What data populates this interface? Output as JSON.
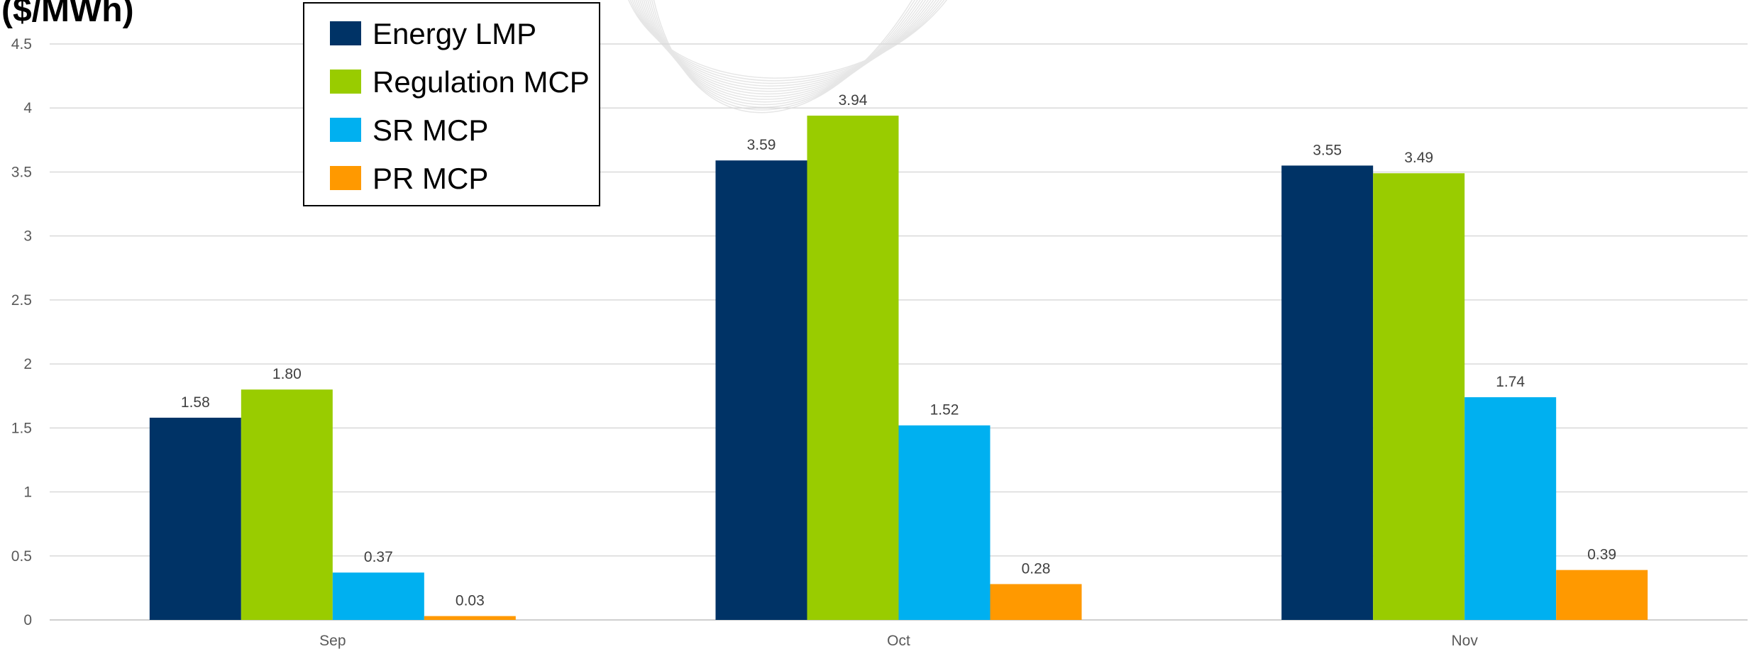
{
  "chart_data": {
    "type": "bar",
    "title": "($/MWh)",
    "xlabel": "",
    "ylabel": "",
    "categories": [
      "Sep",
      "Oct",
      "Nov"
    ],
    "ylim": [
      0,
      4.5
    ],
    "yticks": [
      "0",
      "0.5",
      "1",
      "1.5",
      "2",
      "2.5",
      "3",
      "3.5",
      "4",
      "4.5"
    ],
    "grid": true,
    "legend_position": "top-left",
    "series": [
      {
        "name": "Energy LMP",
        "color": "#003366",
        "values": [
          1.58,
          3.59,
          3.55
        ],
        "labels": [
          "1.58",
          "3.59",
          "3.55"
        ]
      },
      {
        "name": "Regulation MCP",
        "color": "#99CC00",
        "values": [
          1.8,
          3.94,
          3.49
        ],
        "labels": [
          "1.80",
          "3.94",
          "3.49"
        ]
      },
      {
        "name": "SR MCP",
        "color": "#00B0F0",
        "values": [
          0.37,
          1.52,
          1.74
        ],
        "labels": [
          "0.37",
          "1.52",
          "1.74"
        ]
      },
      {
        "name": "PR MCP",
        "color": "#FF9900",
        "values": [
          0.03,
          0.28,
          0.39
        ],
        "labels": [
          "0.03",
          "0.28",
          "0.39"
        ]
      }
    ]
  }
}
